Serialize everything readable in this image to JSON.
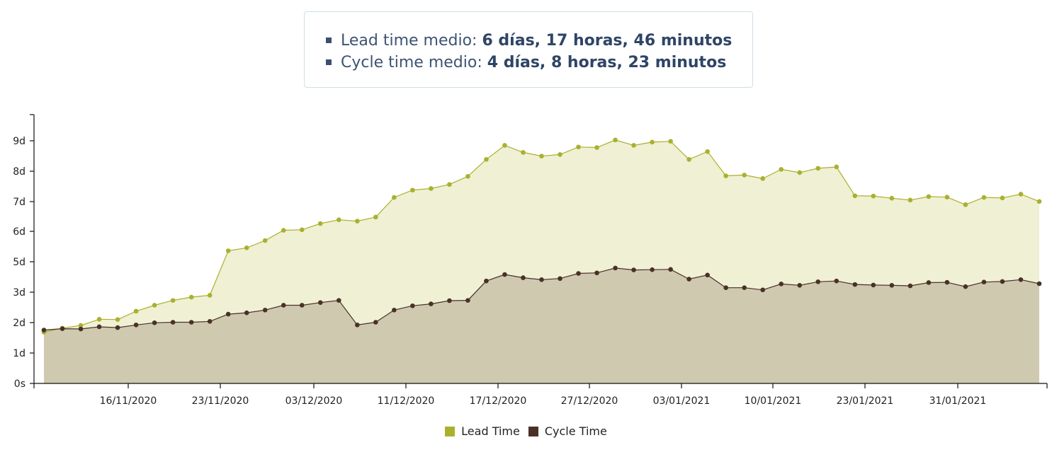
{
  "summary": {
    "lead_label": "Lead time medio:",
    "lead_value": "6 días, 17 horas, 46 minutos",
    "cycle_label": "Cycle time medio:",
    "cycle_value": "4 días, 8 horas, 23 minutos"
  },
  "colors": {
    "lead_line": "#aab02e",
    "lead_fill": "#eff0d4",
    "cycle_line": "#4a3128",
    "cycle_fill": "#cfc9b0",
    "bullet": "#3b4f72"
  },
  "chart_data": {
    "type": "area",
    "title": "",
    "xlabel": "",
    "ylabel": "",
    "y_tick_labels": [
      "0s",
      "1d",
      "2d",
      "3d",
      "5d",
      "6d",
      "7d",
      "8d",
      "9d"
    ],
    "x_tick_labels": [
      "16/11/2020",
      "23/11/2020",
      "03/12/2020",
      "11/12/2020",
      "17/12/2020",
      "27/12/2020",
      "03/01/2021",
      "10/01/2021",
      "23/01/2021",
      "31/01/2021"
    ],
    "legend": "bottom-center",
    "grid": false,
    "series": [
      {
        "name": "Lead Time",
        "values": [
          1.9,
          2.05,
          2.15,
          2.38,
          2.37,
          2.68,
          2.9,
          3.08,
          3.2,
          3.27,
          4.92,
          5.03,
          5.3,
          5.68,
          5.7,
          5.93,
          6.07,
          6.02,
          6.17,
          6.9,
          7.17,
          7.23,
          7.38,
          7.68,
          8.31,
          8.83,
          8.57,
          8.43,
          8.49,
          8.77,
          8.75,
          9.03,
          8.83,
          8.95,
          8.98,
          8.31,
          8.6,
          7.7,
          7.73,
          7.6,
          7.94,
          7.82,
          7.98,
          8.03,
          6.96,
          6.95,
          6.87,
          6.8,
          6.93,
          6.91,
          6.63,
          6.9,
          6.88,
          7.02,
          6.75
        ]
      },
      {
        "name": "Cycle Time",
        "values": [
          1.98,
          2.03,
          2.02,
          2.1,
          2.07,
          2.17,
          2.25,
          2.27,
          2.27,
          2.3,
          2.57,
          2.62,
          2.72,
          2.9,
          2.9,
          3.0,
          3.08,
          2.17,
          2.27,
          2.72,
          2.88,
          2.95,
          3.07,
          3.08,
          3.8,
          4.04,
          3.92,
          3.85,
          3.89,
          4.08,
          4.1,
          4.28,
          4.21,
          4.22,
          4.23,
          3.87,
          4.02,
          3.55,
          3.55,
          3.47,
          3.69,
          3.64,
          3.77,
          3.8,
          3.67,
          3.65,
          3.64,
          3.62,
          3.74,
          3.75,
          3.59,
          3.76,
          3.78,
          3.85,
          3.7
        ]
      }
    ]
  }
}
